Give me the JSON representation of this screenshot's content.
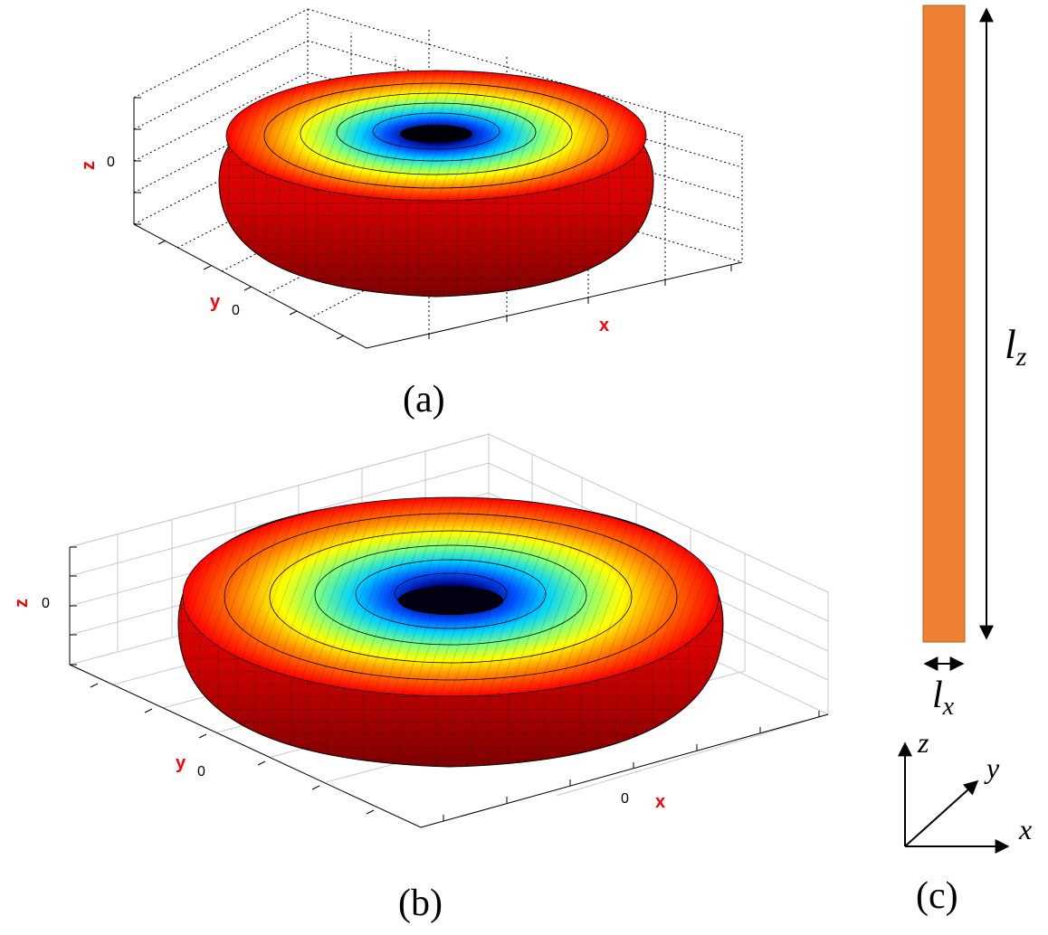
{
  "panels": {
    "a": {
      "caption": "(a)",
      "axes": {
        "z_label": "z",
        "z_tick": "0",
        "y_label": "y",
        "y_tick": "0",
        "x_label": "x"
      }
    },
    "b": {
      "caption": "(b)",
      "axes": {
        "z_label": "z",
        "z_tick": "0",
        "y_label": "y",
        "y_tick": "0",
        "x_label": "x",
        "x_tick": "0"
      }
    },
    "c": {
      "caption": "(c)",
      "lz_label": "l",
      "lz_sub": "z",
      "lx_label": "l",
      "lx_sub": "x",
      "triad": {
        "z": "z",
        "y": "y",
        "x": "x"
      },
      "bar_color": "#ED8032"
    }
  },
  "colors": {
    "axis_label": "#ff0000",
    "torus_bands": [
      "#00007f",
      "#0040ff",
      "#00c0ff",
      "#7fff7f",
      "#ffff00",
      "#ff8000",
      "#ff0000",
      "#8f0000"
    ]
  }
}
